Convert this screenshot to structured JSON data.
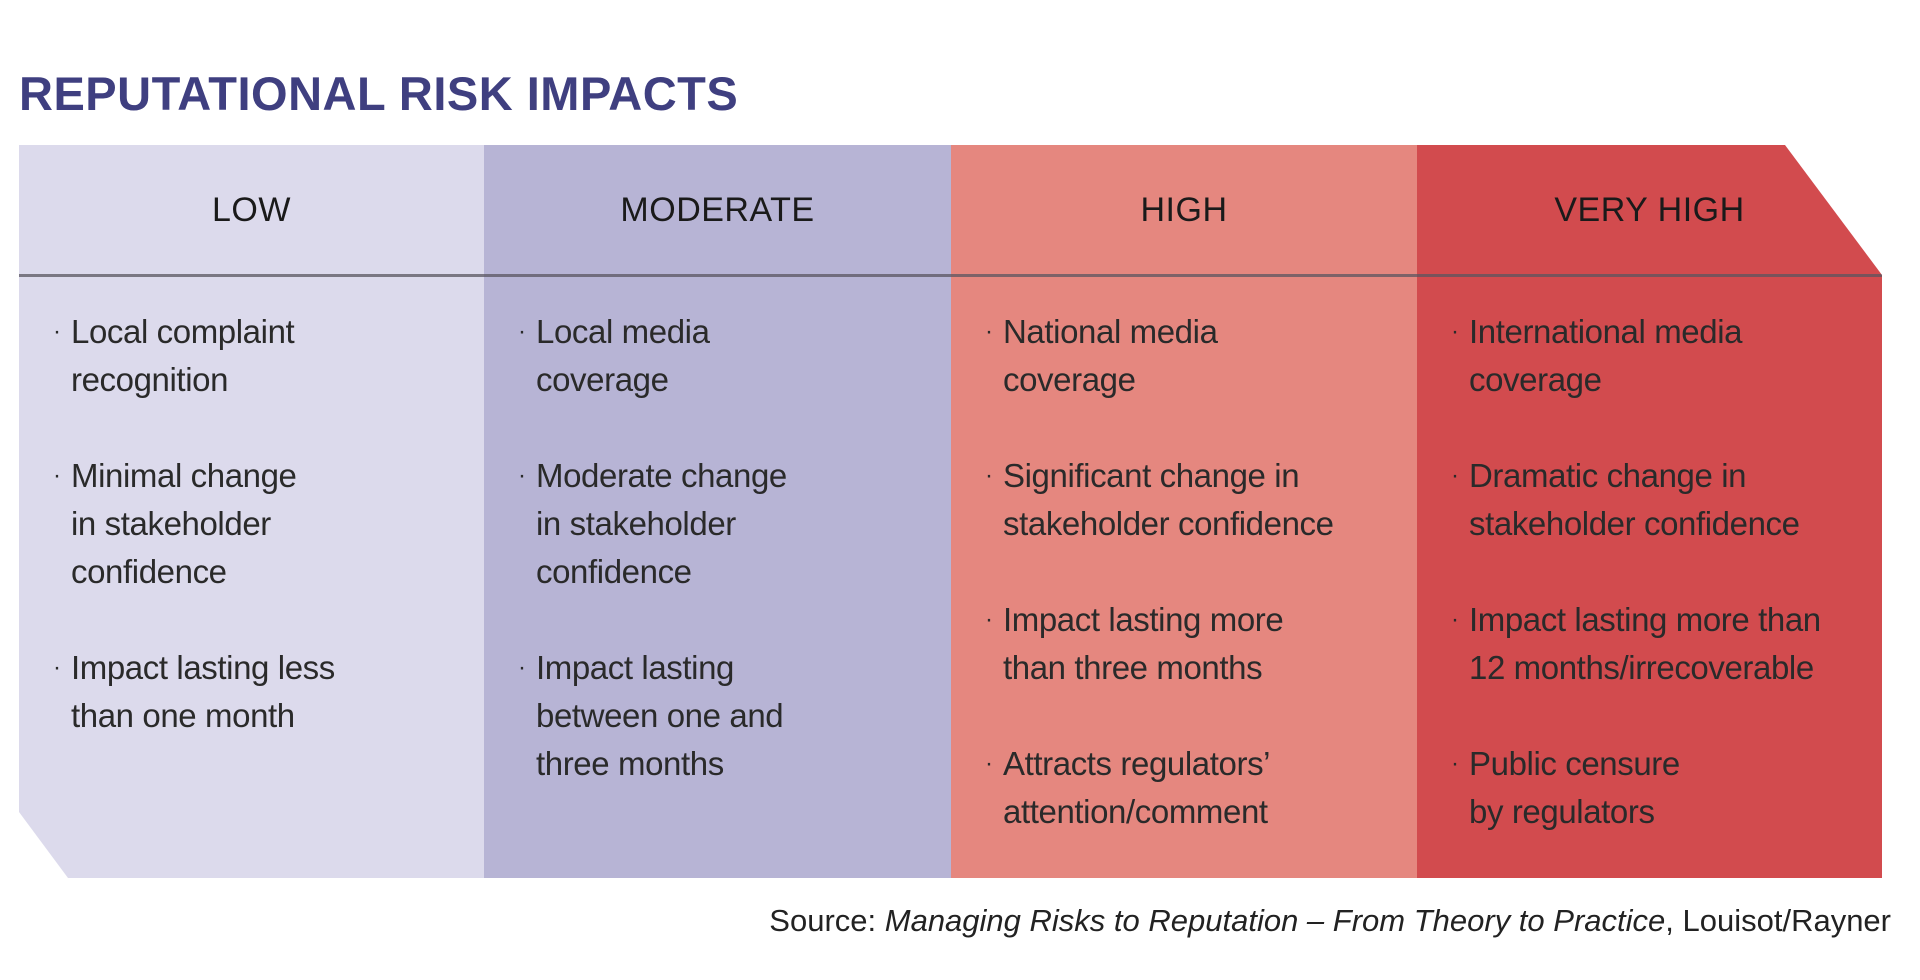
{
  "title": "REPUTATIONAL RISK IMPACTS",
  "colors": {
    "title": "#3f3f80",
    "low": "#dcdaec",
    "moderate": "#b7b4d5",
    "high": "#e5877f",
    "very_high": "#d24b4e"
  },
  "columns": [
    {
      "label": "LOW",
      "items": [
        "Local complaint\nrecognition",
        "Minimal change\nin stakeholder\nconfidence",
        "Impact lasting less\nthan one month"
      ]
    },
    {
      "label": "MODERATE",
      "items": [
        "Local media\ncoverage",
        "Moderate change\nin stakeholder\nconfidence",
        "Impact lasting\nbetween one and\nthree months"
      ]
    },
    {
      "label": "HIGH",
      "items": [
        "National media\ncoverage",
        "Significant change in\nstakeholder confidence",
        "Impact lasting more\nthan three months",
        "Attracts regulators’\nattention/comment"
      ]
    },
    {
      "label": "VERY HIGH",
      "items": [
        "International media\ncoverage",
        "Dramatic change in\nstakeholder confidence",
        "Impact lasting more than\n12 months/irrecoverable",
        "Public censure\nby regulators"
      ]
    }
  ],
  "bullet": "·",
  "source": {
    "prefix": "Source: ",
    "work": "Managing Risks to Reputation – From Theory to Practice",
    "suffix": ", Louisot/Rayner"
  }
}
